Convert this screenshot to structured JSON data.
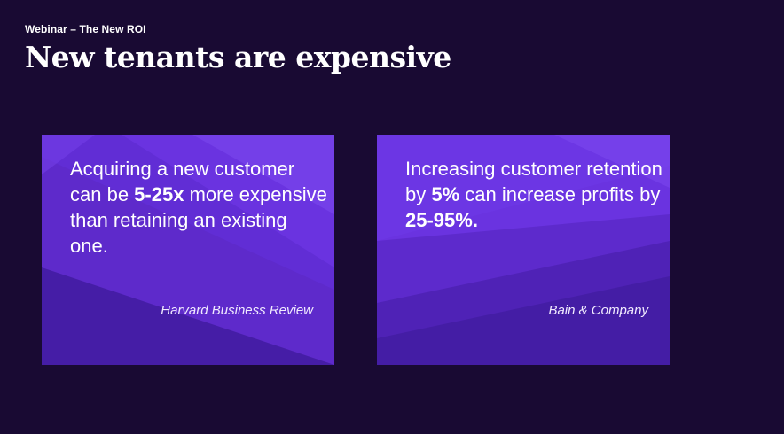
{
  "slide": {
    "kicker": "Webinar – The New ROI",
    "title": "New tenants are expensive"
  },
  "cards": [
    {
      "stat_before": "Acquiring a new customer can be ",
      "stat_emphasis": "5-25x",
      "stat_after": " more expensive than retaining an existing one.",
      "source": "Harvard Business Review"
    },
    {
      "stat_before": "Increasing customer retention by ",
      "stat_emphasis": "5%",
      "stat_after": " can increase profits by ",
      "stat_emphasis_2": "25-95%.",
      "source": "Bain & Company"
    }
  ],
  "colors": {
    "background": "#190a33",
    "card_primary": "#6b35e0",
    "text": "#ffffff"
  }
}
